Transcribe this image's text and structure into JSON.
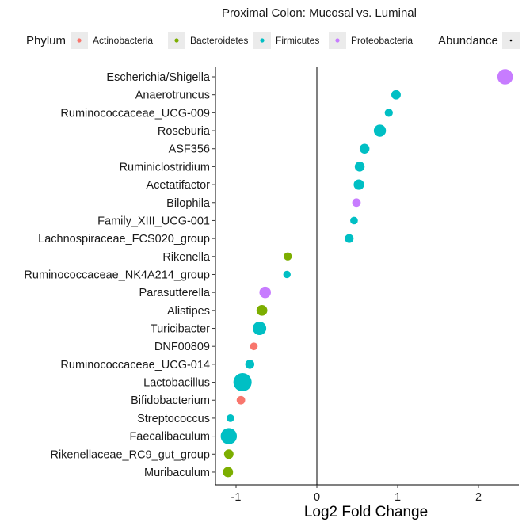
{
  "chart_data": {
    "type": "scatter",
    "title": "Proximal Colon: Mucosal vs. Luminal",
    "xlabel": "Log2 Fold Change",
    "ylabel": "",
    "xlim": [
      -1.25,
      2.5
    ],
    "x_ticks": [
      -1,
      0,
      1,
      2
    ],
    "grid": false,
    "reference_line_x": 0,
    "legend": {
      "placement": "top",
      "phylum_title": "Phylum",
      "phylum_entries": [
        {
          "name": "Actinobacteria",
          "color": "#F8766D"
        },
        {
          "name": "Bacteroidetes",
          "color": "#7CAE00"
        },
        {
          "name": "Firmicutes",
          "color": "#00BFC4"
        },
        {
          "name": "Proteobacteria",
          "color": "#C77CFF"
        }
      ],
      "abundance_title": "Abundance"
    },
    "points": [
      {
        "taxon": "Escherichia/Shigella",
        "log2fc": 2.33,
        "phylum": "Proteobacteria",
        "abundance": 0.8
      },
      {
        "taxon": "Anaerotruncus",
        "log2fc": 0.98,
        "phylum": "Firmicutes",
        "abundance": 0.35
      },
      {
        "taxon": "Ruminococcaceae_UCG-009",
        "log2fc": 0.89,
        "phylum": "Firmicutes",
        "abundance": 0.25
      },
      {
        "taxon": "Roseburia",
        "log2fc": 0.78,
        "phylum": "Firmicutes",
        "abundance": 0.55
      },
      {
        "taxon": "ASF356",
        "log2fc": 0.59,
        "phylum": "Firmicutes",
        "abundance": 0.38
      },
      {
        "taxon": "Ruminiclostridium",
        "log2fc": 0.53,
        "phylum": "Firmicutes",
        "abundance": 0.38
      },
      {
        "taxon": "Acetatifactor",
        "log2fc": 0.52,
        "phylum": "Firmicutes",
        "abundance": 0.42
      },
      {
        "taxon": "Bilophila",
        "log2fc": 0.49,
        "phylum": "Proteobacteria",
        "abundance": 0.28
      },
      {
        "taxon": "Family_XIII_UCG-001",
        "log2fc": 0.46,
        "phylum": "Firmicutes",
        "abundance": 0.22
      },
      {
        "taxon": "Lachnospiraceae_FCS020_group",
        "log2fc": 0.4,
        "phylum": "Firmicutes",
        "abundance": 0.3
      },
      {
        "taxon": "Rikenella",
        "log2fc": -0.36,
        "phylum": "Bacteroidetes",
        "abundance": 0.25
      },
      {
        "taxon": "Ruminococcaceae_NK4A214_group",
        "log2fc": -0.37,
        "phylum": "Firmicutes",
        "abundance": 0.2
      },
      {
        "taxon": "Parasutterella",
        "log2fc": -0.64,
        "phylum": "Proteobacteria",
        "abundance": 0.5
      },
      {
        "taxon": "Alistipes",
        "log2fc": -0.68,
        "phylum": "Bacteroidetes",
        "abundance": 0.45
      },
      {
        "taxon": "Turicibacter",
        "log2fc": -0.71,
        "phylum": "Firmicutes",
        "abundance": 0.65
      },
      {
        "taxon": "DNF00809",
        "log2fc": -0.78,
        "phylum": "Actinobacteria",
        "abundance": 0.22
      },
      {
        "taxon": "Ruminococcaceae_UCG-014",
        "log2fc": -0.83,
        "phylum": "Firmicutes",
        "abundance": 0.32
      },
      {
        "taxon": "Lactobacillus",
        "log2fc": -0.92,
        "phylum": "Firmicutes",
        "abundance": 1.0
      },
      {
        "taxon": "Bifidobacterium",
        "log2fc": -0.94,
        "phylum": "Actinobacteria",
        "abundance": 0.28
      },
      {
        "taxon": "Streptococcus",
        "log2fc": -1.07,
        "phylum": "Firmicutes",
        "abundance": 0.22
      },
      {
        "taxon": "Faecalibaculum",
        "log2fc": -1.09,
        "phylum": "Firmicutes",
        "abundance": 0.85
      },
      {
        "taxon": "Rikenellaceae_RC9_gut_group",
        "log2fc": -1.09,
        "phylum": "Bacteroidetes",
        "abundance": 0.35
      },
      {
        "taxon": "Muribaculum",
        "log2fc": -1.1,
        "phylum": "Bacteroidetes",
        "abundance": 0.4
      }
    ]
  }
}
